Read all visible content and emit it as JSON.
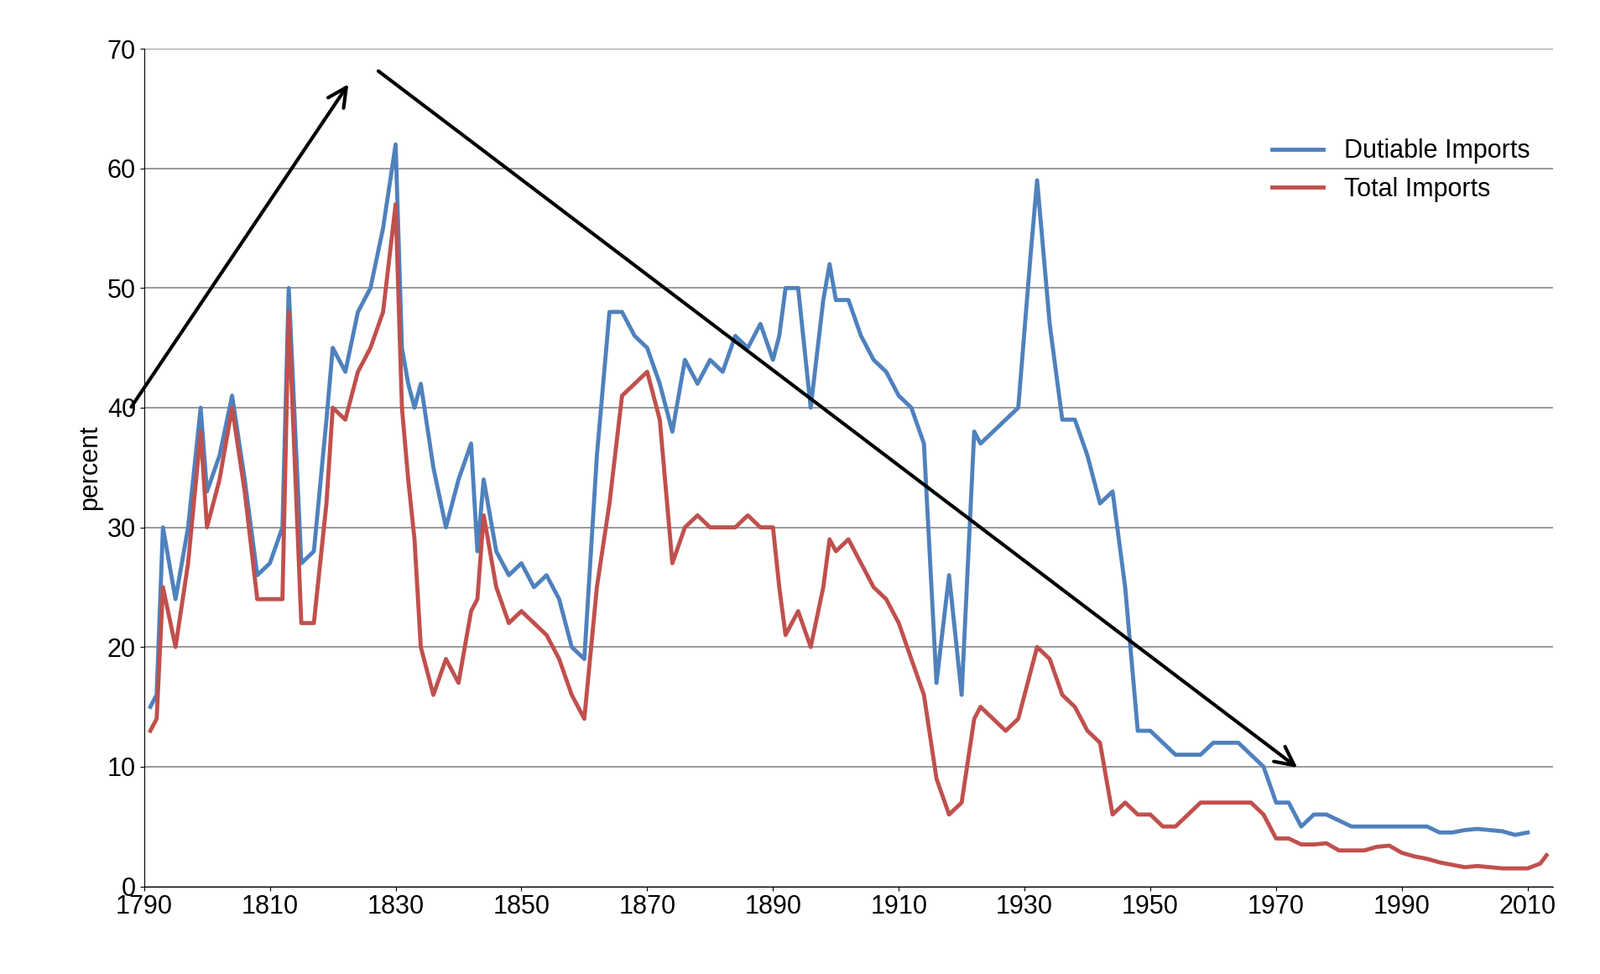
{
  "chart_data": {
    "type": "line",
    "y_label": "percent",
    "x": [
      1791,
      1792,
      1793,
      1795,
      1797,
      1799,
      1800,
      1802,
      1804,
      1806,
      1808,
      1810,
      1812,
      1813,
      1815,
      1817,
      1819,
      1820,
      1822,
      1824,
      1826,
      1828,
      1830,
      1831,
      1832,
      1833,
      1834,
      1836,
      1838,
      1840,
      1842,
      1843,
      1844,
      1846,
      1848,
      1850,
      1852,
      1854,
      1856,
      1858,
      1860,
      1862,
      1864,
      1866,
      1868,
      1870,
      1872,
      1874,
      1876,
      1878,
      1880,
      1882,
      1884,
      1886,
      1888,
      1890,
      1891,
      1892,
      1894,
      1896,
      1898,
      1899,
      1900,
      1902,
      1904,
      1906,
      1908,
      1910,
      1912,
      1914,
      1916,
      1918,
      1920,
      1922,
      1923,
      1925,
      1927,
      1929,
      1931,
      1932,
      1934,
      1936,
      1938,
      1940,
      1942,
      1944,
      1946,
      1948,
      1950,
      1952,
      1954,
      1956,
      1958,
      1960,
      1962,
      1964,
      1966,
      1968,
      1970,
      1972,
      1974,
      1976,
      1978,
      1980,
      1982,
      1984,
      1986,
      1988,
      1990,
      1992,
      1994,
      1996,
      1998,
      2000,
      2002,
      2004,
      2006,
      2008,
      2010,
      2011,
      2012,
      2013
    ],
    "series": [
      {
        "name": "Dutiable Imports",
        "color": "#4f81bd",
        "values": [
          15,
          16,
          30,
          24,
          30,
          40,
          33,
          36,
          41,
          34,
          26,
          27,
          30,
          50,
          27,
          28,
          39,
          45,
          43,
          48,
          50,
          55,
          62,
          45,
          42,
          40,
          42,
          35,
          30,
          34,
          37,
          28,
          34,
          28,
          26,
          27,
          25,
          26,
          24,
          20,
          19,
          36,
          48,
          48,
          46,
          45,
          42,
          38,
          44,
          42,
          44,
          43,
          46,
          45,
          47,
          44,
          46,
          50,
          50,
          40,
          49,
          52,
          49,
          49,
          46,
          44,
          43,
          41,
          40,
          37,
          17,
          26,
          16,
          38,
          37,
          38,
          39,
          40,
          53,
          59,
          47,
          39,
          39,
          36,
          32,
          33,
          25,
          13,
          13,
          12,
          11,
          11,
          11,
          12,
          12,
          12,
          11,
          10,
          7,
          7,
          5,
          6,
          6,
          5.5,
          5,
          5,
          5,
          5,
          5,
          5,
          5,
          4.5,
          4.5,
          4.7,
          4.8,
          4.7,
          4.6,
          4.3,
          4.5,
          null,
          null,
          null
        ]
      },
      {
        "name": "Total Imports",
        "color": "#c0504d",
        "values": [
          13,
          14,
          25,
          20,
          27,
          38,
          30,
          34,
          40,
          33,
          24,
          24,
          24,
          48,
          22,
          22,
          32,
          40,
          39,
          43,
          45,
          48,
          57,
          40,
          34,
          29,
          20,
          16,
          19,
          17,
          23,
          24,
          31,
          25,
          22,
          23,
          22,
          21,
          19,
          16,
          14,
          25,
          32,
          41,
          42,
          43,
          39,
          27,
          30,
          31,
          30,
          30,
          30,
          31,
          30,
          30,
          25,
          21,
          23,
          20,
          25,
          29,
          28,
          29,
          27,
          25,
          24,
          22,
          19,
          16,
          9,
          6,
          7,
          14,
          15,
          14,
          13,
          14,
          18,
          20,
          19,
          16,
          15,
          13,
          12,
          6,
          7,
          6,
          6,
          5,
          5,
          6,
          7,
          7,
          7,
          7,
          7,
          6,
          4,
          4,
          3.5,
          3.5,
          3.6,
          3,
          3,
          3,
          3.3,
          3.4,
          2.8,
          2.5,
          2.3,
          2,
          1.8,
          1.6,
          1.7,
          1.6,
          1.5,
          1.5,
          1.5,
          1.7,
          1.9,
          2.6
        ]
      }
    ],
    "xlim": [
      1790,
      2014
    ],
    "xticks": [
      1790,
      1810,
      1830,
      1850,
      1870,
      1890,
      1910,
      1930,
      1950,
      1970,
      1990,
      2010
    ],
    "ylim": [
      0,
      70
    ],
    "yticks": [
      0,
      10,
      20,
      30,
      40,
      50,
      60,
      70
    ],
    "grid": true,
    "legend": "upper right"
  }
}
